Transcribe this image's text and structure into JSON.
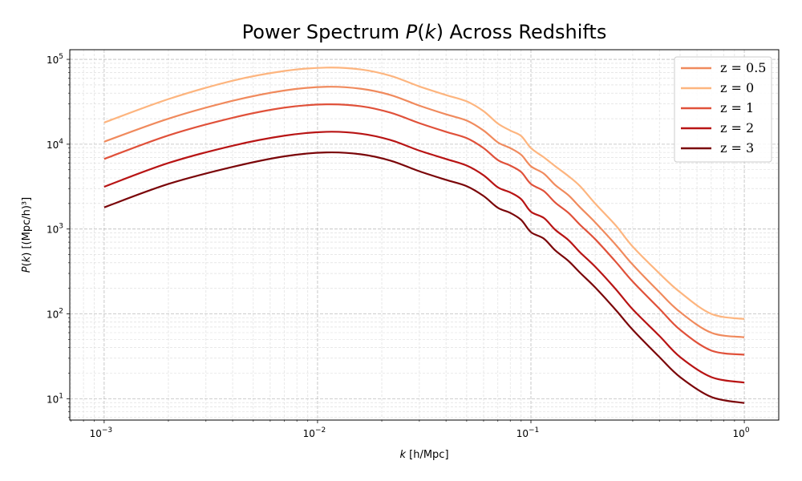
{
  "chart_data": {
    "type": "line",
    "title": "Power Spectrum P(k) Across Redshifts",
    "xlabel": "k [h/Mpc]",
    "ylabel": "P(k) [(Mpc/h)³]",
    "xscale": "log",
    "yscale": "log",
    "xlim": [
      0.00069,
      1.45
    ],
    "ylim": [
      5.6,
      130000
    ],
    "grid": true,
    "legend_position": "top-right",
    "x_ticks": [
      {
        "value": 0.001,
        "base": "10",
        "exp": "−3"
      },
      {
        "value": 0.01,
        "base": "10",
        "exp": "−2"
      },
      {
        "value": 0.1,
        "base": "10",
        "exp": "−1"
      },
      {
        "value": 1,
        "base": "10",
        "exp": "0"
      }
    ],
    "y_ticks": [
      {
        "value": 10,
        "base": "10",
        "exp": "1"
      },
      {
        "value": 100,
        "base": "10",
        "exp": "2"
      },
      {
        "value": 1000,
        "base": "10",
        "exp": "3"
      },
      {
        "value": 10000,
        "base": "10",
        "exp": "4"
      },
      {
        "value": 100000,
        "base": "10",
        "exp": "5"
      }
    ],
    "x": [
      0.001,
      0.002,
      0.004,
      0.007,
      0.011,
      0.016,
      0.022,
      0.03,
      0.04,
      0.05,
      0.06,
      0.07,
      0.08,
      0.09,
      0.1,
      0.115,
      0.13,
      0.15,
      0.17,
      0.2,
      0.25,
      0.3,
      0.4,
      0.5,
      0.7,
      1.0
    ],
    "series": [
      {
        "name": "z = 0.5",
        "color": "#f08a5d",
        "values": [
          10700,
          20000,
          32500,
          43000,
          47500,
          45000,
          38000,
          28500,
          22500,
          19000,
          14500,
          10500,
          9000,
          7500,
          5500,
          4500,
          3300,
          2500,
          1800,
          1200,
          650,
          380,
          180,
          105,
          60,
          53
        ]
      },
      {
        "name": "z = 0",
        "color": "#fdb57f",
        "values": [
          18000,
          34000,
          56000,
          73000,
          80000,
          76000,
          64000,
          48000,
          38000,
          32000,
          24500,
          17500,
          14500,
          12500,
          9000,
          7000,
          5500,
          4200,
          3200,
          2000,
          1100,
          620,
          300,
          180,
          100,
          87
        ]
      },
      {
        "name": "z = 1",
        "color": "#e0513a",
        "values": [
          6700,
          12700,
          20500,
          27000,
          29500,
          28000,
          23500,
          17700,
          14000,
          11800,
          9000,
          6500,
          5600,
          4700,
          3400,
          2800,
          2050,
          1550,
          1120,
          760,
          410,
          240,
          115,
          65,
          37,
          33
        ]
      },
      {
        "name": "z = 2",
        "color": "#b81414",
        "values": [
          3150,
          6000,
          9600,
          12600,
          14000,
          13300,
          11200,
          8400,
          6700,
          5600,
          4300,
          3100,
          2700,
          2250,
          1600,
          1350,
          980,
          740,
          530,
          360,
          195,
          113,
          55,
          31,
          18,
          15.5
        ]
      },
      {
        "name": "z = 3",
        "color": "#7a0508",
        "values": [
          1800,
          3400,
          5400,
          7200,
          8000,
          7600,
          6400,
          4800,
          3800,
          3200,
          2450,
          1780,
          1550,
          1280,
          920,
          770,
          560,
          420,
          305,
          205,
          111,
          65,
          31,
          18,
          10.5,
          8.9
        ]
      }
    ],
    "legend_order": [
      "z = 0.5",
      "z = 0",
      "z = 1",
      "z = 2",
      "z = 3"
    ]
  }
}
